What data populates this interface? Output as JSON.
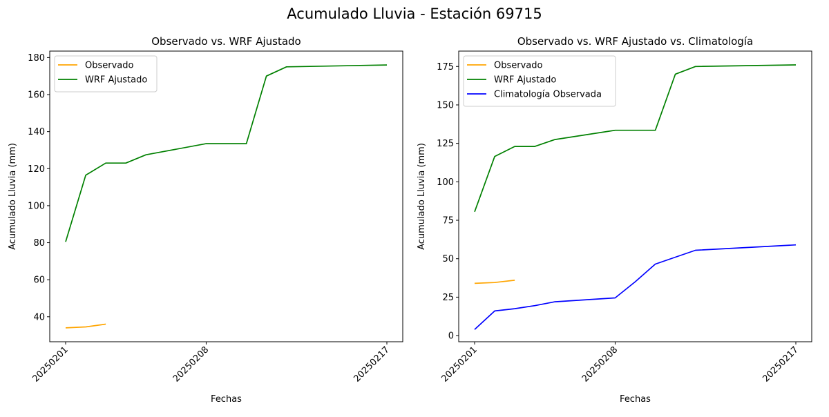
{
  "figure": {
    "title": "Acumulado Lluvia - Estación 69715"
  },
  "chart_data": [
    {
      "type": "line",
      "title": "Observado vs. WRF Ajustado",
      "xlabel": "Fechas",
      "ylabel": "Acumulado Lluvia (mm)",
      "x_ticks": [
        "20250201",
        "20250208",
        "20250217"
      ],
      "ylim": [
        26.5,
        183.5
      ],
      "y_ticks": [
        40,
        60,
        80,
        100,
        120,
        140,
        160,
        180
      ],
      "grid": false,
      "legend_position": "upper-left",
      "series": [
        {
          "name": "Observado",
          "color": "#FFA500",
          "points": [
            {
              "x": "20250201",
              "y": 34.0
            },
            {
              "x": "20250202",
              "y": 34.5
            },
            {
              "x": "20250203",
              "y": 36.0
            }
          ]
        },
        {
          "name": "WRF Ajustado",
          "color": "#008000",
          "points": [
            {
              "x": "20250201",
              "y": 80.5
            },
            {
              "x": "20250202",
              "y": 116.5
            },
            {
              "x": "20250203",
              "y": 123.0
            },
            {
              "x": "20250204",
              "y": 123.0
            },
            {
              "x": "20250205",
              "y": 127.5
            },
            {
              "x": "20250208",
              "y": 133.5
            },
            {
              "x": "20250209",
              "y": 133.5
            },
            {
              "x": "20250210",
              "y": 133.5
            },
            {
              "x": "20250211",
              "y": 170.0
            },
            {
              "x": "20250212",
              "y": 175.0
            },
            {
              "x": "20250217",
              "y": 176.0
            }
          ]
        }
      ]
    },
    {
      "type": "line",
      "title": "Observado vs. WRF Ajustado vs. Climatología",
      "xlabel": "Fechas",
      "ylabel": "Acumulado Lluvia (mm)",
      "x_ticks": [
        "20250201",
        "20250208",
        "20250217"
      ],
      "ylim": [
        -4,
        185
      ],
      "y_ticks": [
        0,
        25,
        50,
        75,
        100,
        125,
        150,
        175
      ],
      "grid": false,
      "legend_position": "upper-left",
      "series": [
        {
          "name": "Observado",
          "color": "#FFA500",
          "points": [
            {
              "x": "20250201",
              "y": 34.0
            },
            {
              "x": "20250202",
              "y": 34.5
            },
            {
              "x": "20250203",
              "y": 36.0
            }
          ]
        },
        {
          "name": "WRF Ajustado",
          "color": "#008000",
          "points": [
            {
              "x": "20250201",
              "y": 80.5
            },
            {
              "x": "20250202",
              "y": 116.5
            },
            {
              "x": "20250203",
              "y": 123.0
            },
            {
              "x": "20250204",
              "y": 123.0
            },
            {
              "x": "20250205",
              "y": 127.5
            },
            {
              "x": "20250208",
              "y": 133.5
            },
            {
              "x": "20250209",
              "y": 133.5
            },
            {
              "x": "20250210",
              "y": 133.5
            },
            {
              "x": "20250211",
              "y": 170.0
            },
            {
              "x": "20250212",
              "y": 175.0
            },
            {
              "x": "20250217",
              "y": 176.0
            }
          ]
        },
        {
          "name": "Climatología Observada",
          "color": "#0000FF",
          "points": [
            {
              "x": "20250201",
              "y": 4.0
            },
            {
              "x": "20250202",
              "y": 16.0
            },
            {
              "x": "20250203",
              "y": 17.5
            },
            {
              "x": "20250204",
              "y": 19.5
            },
            {
              "x": "20250205",
              "y": 22.0
            },
            {
              "x": "20250208",
              "y": 24.5
            },
            {
              "x": "20250209",
              "y": 35.0
            },
            {
              "x": "20250210",
              "y": 46.5
            },
            {
              "x": "20250211",
              "y": 51.0
            },
            {
              "x": "20250212",
              "y": 55.5
            },
            {
              "x": "20250217",
              "y": 59.0
            }
          ]
        }
      ]
    }
  ]
}
